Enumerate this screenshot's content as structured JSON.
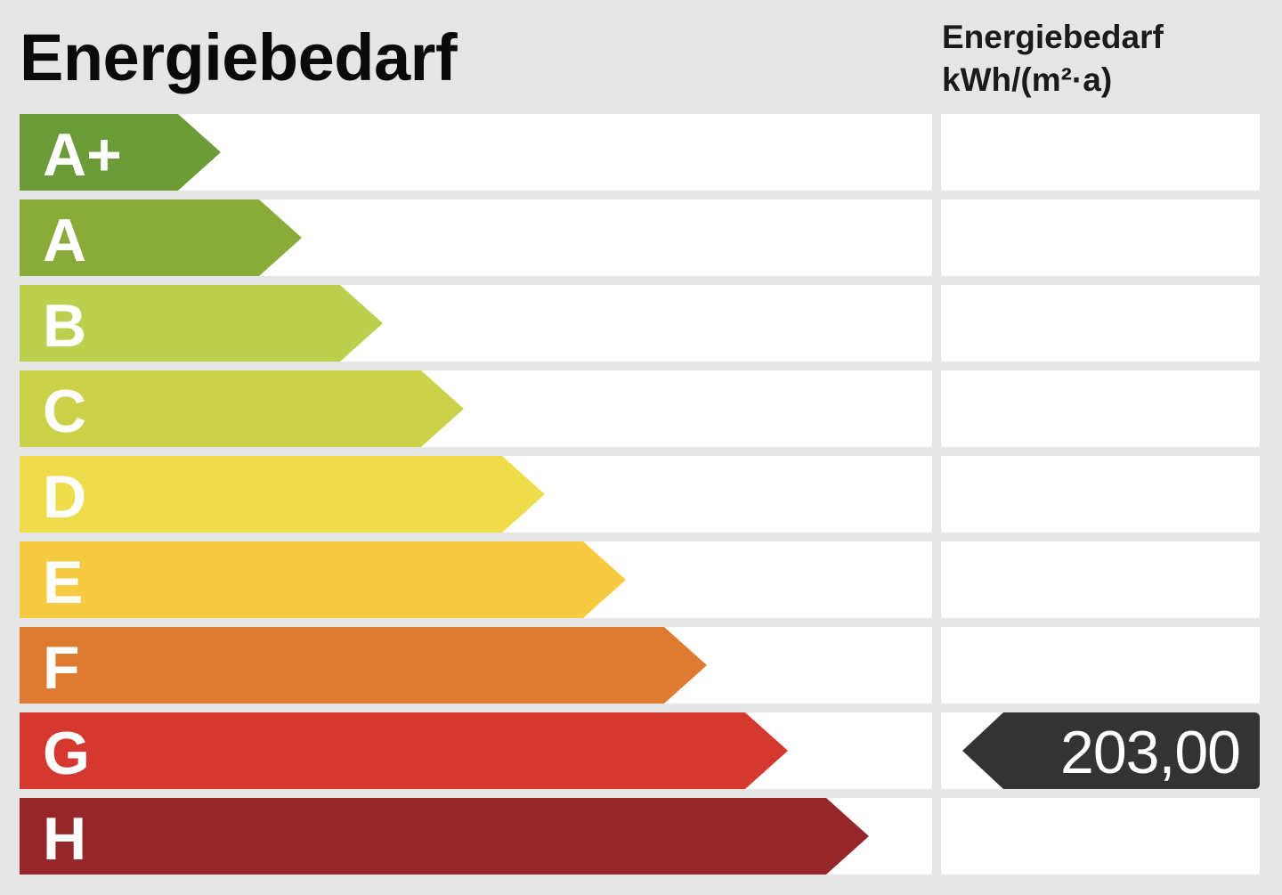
{
  "title": "Energiebedarf",
  "column_header": {
    "line1": "Energiebedarf",
    "line2": "kWh/(m²·a)"
  },
  "classes": [
    {
      "label": "A+",
      "color": "#6c9c38",
      "body_width": 178
    },
    {
      "label": "A",
      "color": "#8aab3a",
      "body_width": 269
    },
    {
      "label": "B",
      "color": "#bccf4e",
      "body_width": 360
    },
    {
      "label": "C",
      "color": "#cbd24a",
      "body_width": 451
    },
    {
      "label": "D",
      "color": "#eedc4a",
      "body_width": 542
    },
    {
      "label": "E",
      "color": "#f6cb42",
      "body_width": 633
    },
    {
      "label": "F",
      "color": "#dd7b30",
      "body_width": 724
    },
    {
      "label": "G",
      "color": "#d4382e",
      "body_width": 815
    },
    {
      "label": "H",
      "color": "#952629",
      "body_width": 906
    }
  ],
  "indicator": {
    "value": "203,00",
    "row_index": 7,
    "color": "#333333"
  },
  "chart_data": {
    "type": "bar",
    "title": "Energiebedarf",
    "ylabel": "Energiebedarf kWh/(m²·a)",
    "categories": [
      "A+",
      "A",
      "B",
      "C",
      "D",
      "E",
      "F",
      "G",
      "H"
    ],
    "colors": [
      "#6c9c38",
      "#8aab3a",
      "#bccf4e",
      "#cbd24a",
      "#eedc4a",
      "#f6cb42",
      "#dd7b30",
      "#d4382e",
      "#952629"
    ],
    "highlighted_class": "G",
    "value": 203.0,
    "value_label": "203,00"
  }
}
